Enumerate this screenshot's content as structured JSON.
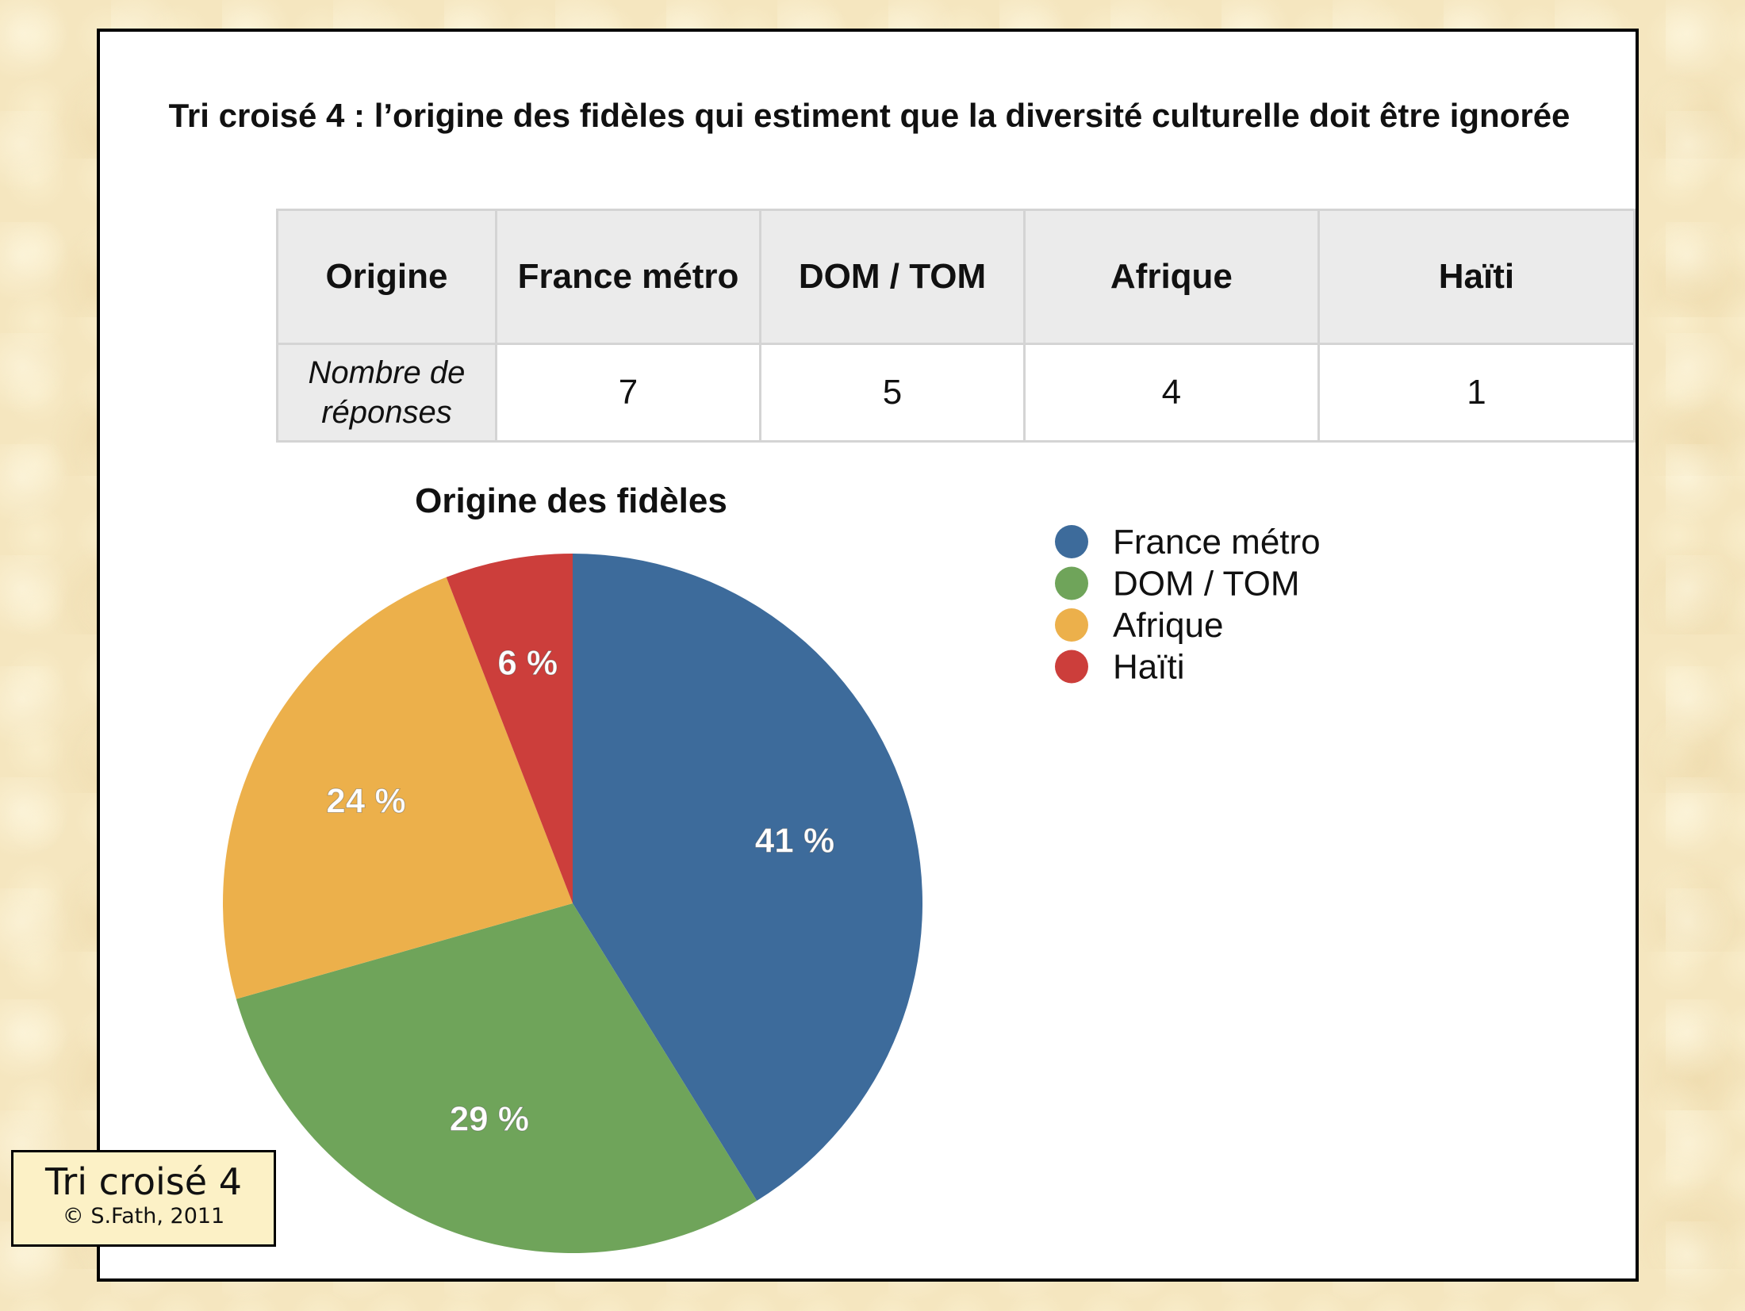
{
  "title": "Tri croisé 4 : l’origine des fidèles qui estiment que la diversité culturelle doit être ignorée",
  "table": {
    "header": [
      "Origine",
      "France métro",
      "DOM /  TOM",
      "Afrique",
      "Haïti"
    ],
    "row_label_line1": "Nombre de",
    "row_label_line2": "réponses",
    "values": [
      "7",
      "5",
      "4",
      "1"
    ]
  },
  "chart_data": {
    "type": "pie",
    "title": "Origine des fidèles",
    "categories": [
      "France métro",
      "DOM /  TOM",
      "Afrique",
      "Haïti"
    ],
    "values": [
      7,
      5,
      4,
      1
    ],
    "percent_labels": [
      "41 %",
      "29 %",
      "24 %",
      "6 %"
    ],
    "colors": [
      "#3d6b9b",
      "#6fa45a",
      "#ecb04b",
      "#cc3e3b"
    ],
    "legend_position": "right"
  },
  "stamp": {
    "title": "Tri croisé 4",
    "credit": "© S.Fath, 2011"
  }
}
